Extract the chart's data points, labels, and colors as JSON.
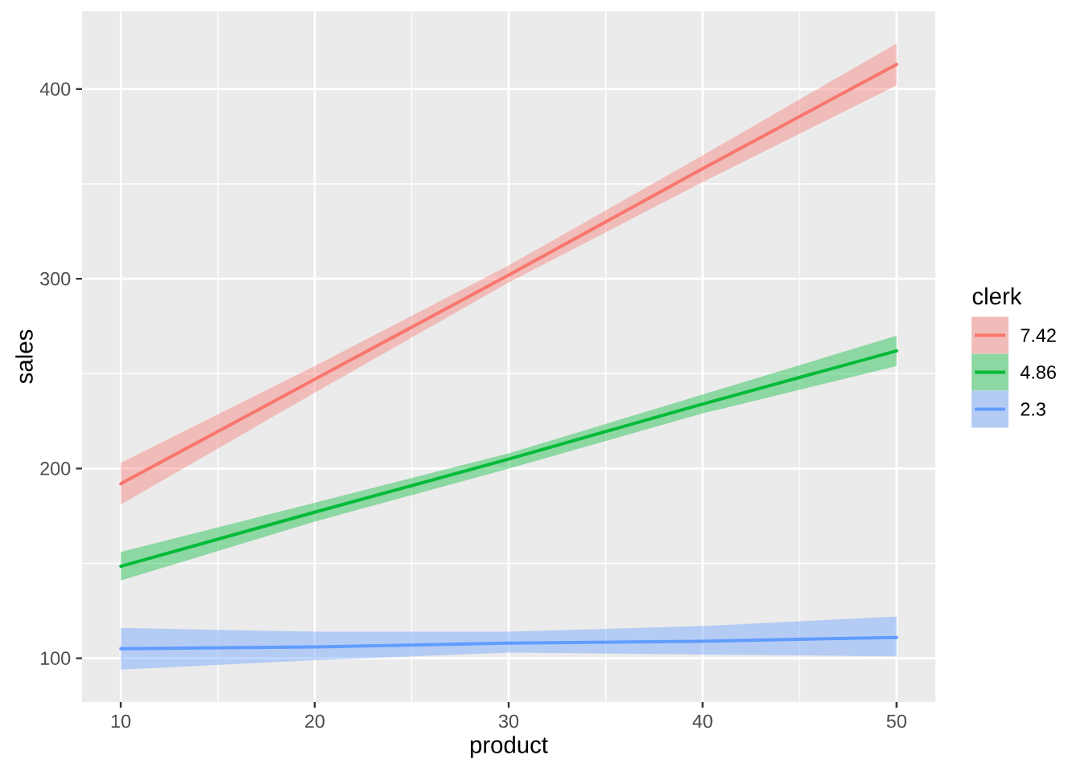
{
  "chart_data": {
    "type": "line",
    "xlabel": "product",
    "ylabel": "sales",
    "legend_title": "clerk",
    "x": [
      10,
      20,
      30,
      40,
      50
    ],
    "xlim": [
      8,
      52
    ],
    "ylim": [
      77,
      441
    ],
    "xticks": [
      10,
      20,
      30,
      40,
      50
    ],
    "yticks": [
      100,
      200,
      300,
      400
    ],
    "grid": true,
    "legend": "right",
    "series": [
      {
        "name": "7.42",
        "color": "#f8766d",
        "values": [
          192,
          247,
          302,
          358,
          413
        ],
        "lower": [
          181,
          240,
          298,
          351,
          402
        ],
        "upper": [
          203,
          254,
          307,
          365,
          424
        ]
      },
      {
        "name": "4.86",
        "color": "#00ba38",
        "values": [
          148.5,
          177,
          205,
          234,
          262
        ],
        "lower": [
          141,
          172,
          200,
          229,
          254
        ],
        "upper": [
          156,
          182,
          208,
          239,
          270
        ]
      },
      {
        "name": "2.3",
        "color": "#619cff",
        "values": [
          105,
          106,
          108,
          109,
          111
        ],
        "lower": [
          94,
          99,
          103,
          102,
          101
        ],
        "upper": [
          116,
          114,
          114,
          117,
          122
        ]
      }
    ]
  }
}
